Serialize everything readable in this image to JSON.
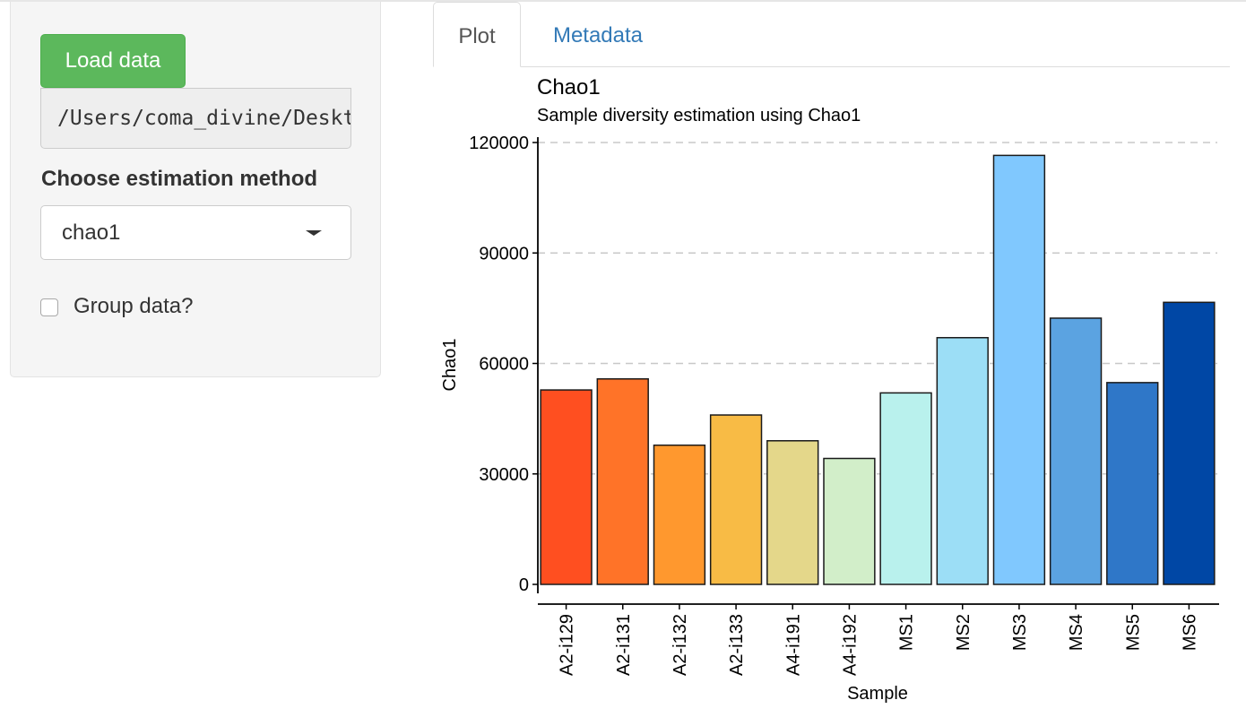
{
  "sidebar": {
    "load_button": "Load data",
    "file_path": "/Users/coma_divine/Desktop",
    "method_label": "Choose estimation method",
    "method_selected": "chao1",
    "group_label": "Group data?",
    "group_checked": false
  },
  "tabs": [
    {
      "label": "Plot",
      "active": true
    },
    {
      "label": "Metadata",
      "active": false
    }
  ],
  "colors": {
    "accent_green": "#5cb85c",
    "link_blue": "#337ab7"
  },
  "chart_data": {
    "type": "bar",
    "title": "Chao1",
    "subtitle": "Sample diversity estimation using Chao1",
    "xlabel": "Sample",
    "ylabel": "Chao1",
    "ylim": [
      0,
      120000
    ],
    "yticks": [
      0,
      30000,
      60000,
      90000,
      120000
    ],
    "grid": "horizontal dashed",
    "categories": [
      "A2-i129",
      "A2-i131",
      "A2-i132",
      "A2-i133",
      "A4-i191",
      "A4-i192",
      "MS1",
      "MS2",
      "MS3",
      "MS4",
      "MS5",
      "MS6"
    ],
    "values": [
      52800,
      55800,
      37800,
      46000,
      39000,
      34200,
      52000,
      67000,
      116500,
      72300,
      54800,
      76600
    ],
    "bar_colors": [
      "#ff4f20",
      "#ff7328",
      "#ff982e",
      "#f8bb45",
      "#e4d78a",
      "#d2eec9",
      "#b9f1ed",
      "#9cdef6",
      "#80c8fe",
      "#5ba3e1",
      "#2f77c8",
      "#0047a5"
    ]
  }
}
